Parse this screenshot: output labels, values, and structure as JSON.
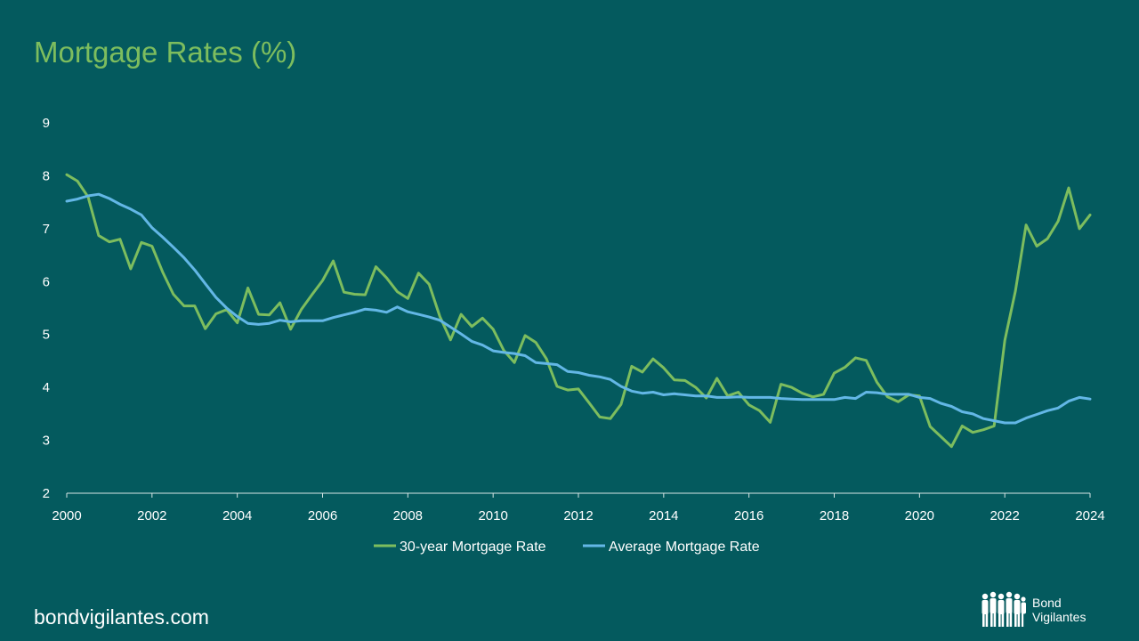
{
  "page": {
    "title": "Mortgage Rates (%)",
    "footer": "bondvigilantes.com",
    "logo": {
      "line1": "Bond",
      "line2": "Vigilantes"
    }
  },
  "colors": {
    "background": "#045a5e",
    "series_30yr": "#7dbd5e",
    "series_avg": "#63b7e6",
    "axis": "#d9e6e6"
  },
  "chart_data": {
    "type": "line",
    "title": "Mortgage Rates (%)",
    "xlabel": "",
    "ylabel": "",
    "xlim": [
      2000,
      2024
    ],
    "ylim": [
      2,
      9
    ],
    "x_ticks": [
      "2000",
      "2002",
      "2004",
      "2006",
      "2008",
      "2010",
      "2012",
      "2014",
      "2016",
      "2018",
      "2020",
      "2022",
      "2024"
    ],
    "y_ticks": [
      "2",
      "3",
      "4",
      "5",
      "6",
      "7",
      "8",
      "9"
    ],
    "grid": false,
    "legend": "bottom",
    "series": [
      {
        "name": "30-year Mortgage Rate",
        "color": "#7dbd5e",
        "x": [
          2000.0,
          2000.25,
          2000.5,
          2000.75,
          2001.0,
          2001.25,
          2001.5,
          2001.75,
          2002.0,
          2002.25,
          2002.5,
          2002.75,
          2003.0,
          2003.25,
          2003.5,
          2003.75,
          2004.0,
          2004.25,
          2004.5,
          2004.75,
          2005.0,
          2005.25,
          2005.5,
          2005.75,
          2006.0,
          2006.25,
          2006.5,
          2006.75,
          2007.0,
          2007.25,
          2007.5,
          2007.75,
          2008.0,
          2008.25,
          2008.5,
          2008.75,
          2009.0,
          2009.25,
          2009.5,
          2009.75,
          2010.0,
          2010.25,
          2010.5,
          2010.75,
          2011.0,
          2011.25,
          2011.5,
          2011.75,
          2012.0,
          2012.25,
          2012.5,
          2012.75,
          2013.0,
          2013.25,
          2013.5,
          2013.75,
          2014.0,
          2014.25,
          2014.5,
          2014.75,
          2015.0,
          2015.25,
          2015.5,
          2015.75,
          2016.0,
          2016.25,
          2016.5,
          2016.75,
          2017.0,
          2017.25,
          2017.5,
          2017.75,
          2018.0,
          2018.25,
          2018.5,
          2018.75,
          2019.0,
          2019.25,
          2019.5,
          2019.75,
          2020.0,
          2020.25,
          2020.5,
          2020.75,
          2021.0,
          2021.25,
          2021.5,
          2021.75,
          2022.0,
          2022.25,
          2022.5,
          2022.75,
          2023.0,
          2023.25,
          2023.5,
          2023.75,
          2024.0
        ],
        "values": [
          8.02,
          7.9,
          7.6,
          6.87,
          6.75,
          6.8,
          6.24,
          6.74,
          6.67,
          6.18,
          5.76,
          5.54,
          5.54,
          5.11,
          5.39,
          5.47,
          5.22,
          5.88,
          5.38,
          5.37,
          5.6,
          5.1,
          5.47,
          5.75,
          6.02,
          6.39,
          5.8,
          5.76,
          5.75,
          6.28,
          6.07,
          5.81,
          5.68,
          6.16,
          5.95,
          5.34,
          4.9,
          5.38,
          5.15,
          5.31,
          5.1,
          4.7,
          4.47,
          4.98,
          4.85,
          4.54,
          4.02,
          3.95,
          3.97,
          3.71,
          3.44,
          3.41,
          3.68,
          4.4,
          4.29,
          4.54,
          4.37,
          4.14,
          4.13,
          4.0,
          3.8,
          4.17,
          3.84,
          3.91,
          3.67,
          3.56,
          3.34,
          4.06,
          4.0,
          3.89,
          3.82,
          3.87,
          4.27,
          4.38,
          4.56,
          4.51,
          4.1,
          3.82,
          3.73,
          3.86,
          3.84,
          3.26,
          3.07,
          2.88,
          3.27,
          3.15,
          3.2,
          3.27,
          4.89,
          5.82,
          7.07,
          6.67,
          6.81,
          7.14,
          7.77,
          7.0,
          7.26
        ]
      },
      {
        "name": "Average Mortgage Rate",
        "color": "#63b7e6",
        "x": [
          2000.0,
          2000.25,
          2000.5,
          2000.75,
          2001.0,
          2001.25,
          2001.5,
          2001.75,
          2002.0,
          2002.25,
          2002.5,
          2002.75,
          2003.0,
          2003.25,
          2003.5,
          2003.75,
          2004.0,
          2004.25,
          2004.5,
          2004.75,
          2005.0,
          2005.25,
          2005.5,
          2005.75,
          2006.0,
          2006.25,
          2006.5,
          2006.75,
          2007.0,
          2007.25,
          2007.5,
          2007.75,
          2008.0,
          2008.25,
          2008.5,
          2008.75,
          2009.0,
          2009.25,
          2009.5,
          2009.75,
          2010.0,
          2010.25,
          2010.5,
          2010.75,
          2011.0,
          2011.25,
          2011.5,
          2011.75,
          2012.0,
          2012.25,
          2012.5,
          2012.75,
          2013.0,
          2013.25,
          2013.5,
          2013.75,
          2014.0,
          2014.25,
          2014.5,
          2014.75,
          2015.0,
          2015.25,
          2015.5,
          2015.75,
          2016.0,
          2016.25,
          2016.5,
          2016.75,
          2017.0,
          2017.25,
          2017.5,
          2017.75,
          2018.0,
          2018.25,
          2018.5,
          2018.75,
          2019.0,
          2019.25,
          2019.5,
          2019.75,
          2020.0,
          2020.25,
          2020.5,
          2020.75,
          2021.0,
          2021.25,
          2021.5,
          2021.75,
          2022.0,
          2022.25,
          2022.5,
          2022.75,
          2023.0,
          2023.25,
          2023.5,
          2023.75,
          2024.0
        ],
        "values": [
          7.52,
          7.56,
          7.62,
          7.65,
          7.57,
          7.46,
          7.37,
          7.26,
          7.02,
          6.84,
          6.65,
          6.45,
          6.22,
          5.96,
          5.7,
          5.5,
          5.34,
          5.21,
          5.19,
          5.21,
          5.27,
          5.24,
          5.26,
          5.26,
          5.26,
          5.32,
          5.37,
          5.42,
          5.48,
          5.46,
          5.42,
          5.52,
          5.43,
          5.38,
          5.33,
          5.27,
          5.14,
          5.01,
          4.87,
          4.8,
          4.69,
          4.66,
          4.64,
          4.6,
          4.47,
          4.45,
          4.43,
          4.3,
          4.28,
          4.23,
          4.2,
          4.15,
          4.02,
          3.93,
          3.89,
          3.91,
          3.86,
          3.88,
          3.86,
          3.84,
          3.84,
          3.81,
          3.81,
          3.82,
          3.81,
          3.81,
          3.81,
          3.79,
          3.78,
          3.77,
          3.77,
          3.77,
          3.77,
          3.81,
          3.79,
          3.91,
          3.9,
          3.87,
          3.87,
          3.87,
          3.81,
          3.79,
          3.7,
          3.64,
          3.54,
          3.5,
          3.41,
          3.37,
          3.33,
          3.33,
          3.42,
          3.49,
          3.56,
          3.61,
          3.74,
          3.81,
          3.78
        ]
      }
    ]
  }
}
